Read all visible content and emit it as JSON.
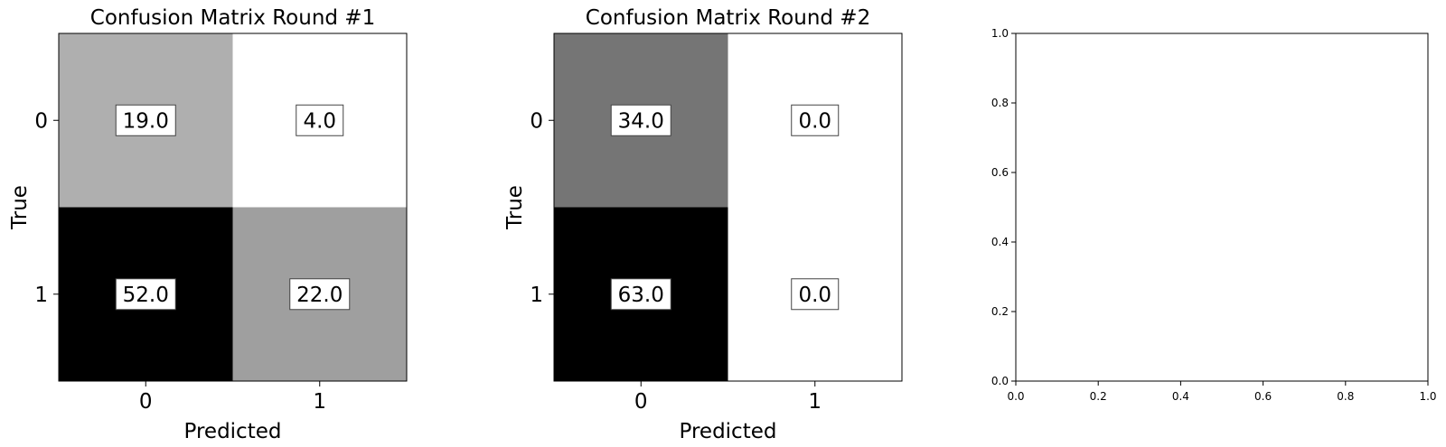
{
  "chart_data": [
    {
      "type": "heatmap",
      "title": "Confusion Matrix Round #1",
      "xlabel": "Predicted",
      "ylabel": "True",
      "x_categories": [
        "0",
        "1"
      ],
      "y_categories": [
        "0",
        "1"
      ],
      "values": [
        [
          19.0,
          4.0
        ],
        [
          52.0,
          22.0
        ]
      ],
      "value_labels": [
        [
          "19.0",
          "4.0"
        ],
        [
          "52.0",
          "22.0"
        ]
      ],
      "colormap": "gray",
      "grid": false
    },
    {
      "type": "heatmap",
      "title": "Confusion Matrix Round #2",
      "xlabel": "Predicted",
      "ylabel": "True",
      "x_categories": [
        "0",
        "1"
      ],
      "y_categories": [
        "0",
        "1"
      ],
      "values": [
        [
          34.0,
          0.0
        ],
        [
          63.0,
          0.0
        ]
      ],
      "value_labels": [
        [
          "34.0",
          "0.0"
        ],
        [
          "63.0",
          "0.0"
        ]
      ],
      "colormap": "gray",
      "grid": false
    },
    {
      "type": "scatter",
      "title": "",
      "xlabel": "",
      "ylabel": "",
      "xlim": [
        0.0,
        1.0
      ],
      "ylim": [
        0.0,
        1.0
      ],
      "x_ticks": [
        "0.0",
        "0.2",
        "0.4",
        "0.6",
        "0.8",
        "1.0"
      ],
      "y_ticks": [
        "0.0",
        "0.2",
        "0.4",
        "0.6",
        "0.8",
        "1.0"
      ],
      "series": [],
      "grid": false
    }
  ]
}
